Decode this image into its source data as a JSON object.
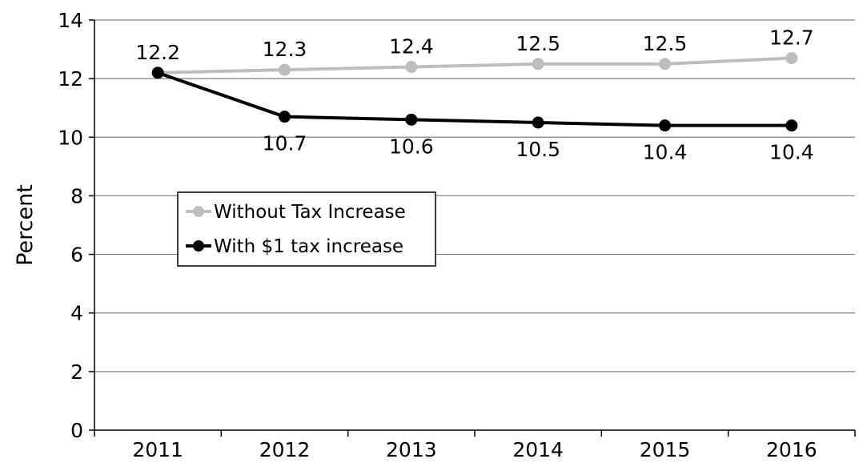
{
  "chart_data": {
    "type": "line",
    "categories": [
      "2011",
      "2012",
      "2013",
      "2014",
      "2015",
      "2016"
    ],
    "ylabel": "Percent",
    "ylim": [
      0,
      14
    ],
    "yticks": [
      0,
      2,
      4,
      6,
      8,
      10,
      12,
      14
    ],
    "grid": true,
    "legend_position": "left",
    "series": [
      {
        "name": "Without Tax Increase",
        "color": "#bdbdbd",
        "values": [
          12.2,
          12.3,
          12.4,
          12.5,
          12.5,
          12.7
        ],
        "labels": [
          "12.2",
          "12.3",
          "12.4",
          "12.5",
          "12.5",
          "12.7"
        ]
      },
      {
        "name": "With $1 tax increase",
        "color": "#000000",
        "values": [
          12.2,
          10.7,
          10.6,
          10.5,
          10.4,
          10.4
        ],
        "labels": [
          "",
          "10.7",
          "10.6",
          "10.5",
          "10.4",
          "10.4"
        ]
      }
    ]
  }
}
